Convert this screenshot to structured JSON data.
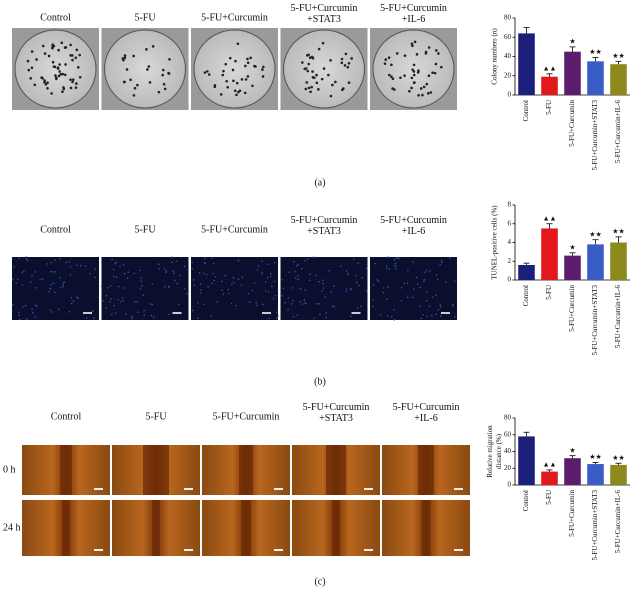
{
  "panels": [
    {
      "label": "(a)",
      "columns": [
        [
          "Control"
        ],
        [
          "5-FU"
        ],
        [
          "5-FU+Curcumin"
        ],
        [
          "5-FU+Curcumin",
          "+STAT3"
        ],
        [
          "5-FU+Curcumin",
          "+IL-6"
        ]
      ]
    },
    {
      "label": "(b)",
      "columns": [
        [
          "Control"
        ],
        [
          "5-FU"
        ],
        [
          "5-FU+Curcumin"
        ],
        [
          "5-FU+Curcumin",
          "+STAT3"
        ],
        [
          "5-FU+Curcumin",
          "+IL-6"
        ]
      ]
    },
    {
      "label": "(c)",
      "columns": [
        [
          "Control"
        ],
        [
          "5-FU"
        ],
        [
          "5-FU+Curcumin"
        ],
        [
          "5-FU+Curcumin",
          "+STAT3"
        ],
        [
          "5-FU+Curcumin",
          "+IL-6"
        ]
      ],
      "rows": [
        "0 h",
        "24 h"
      ]
    }
  ],
  "chart_data": [
    {
      "type": "bar",
      "ylabel": [
        "Colony numbers (n)"
      ],
      "categories": [
        "Control",
        "5-FU",
        "5-FU+Curcumin",
        "5-FU+Curcumin+STAT3",
        "5-FU+Curcumin+IL-6"
      ],
      "values": [
        64,
        19,
        45,
        35,
        32
      ],
      "errors": [
        6,
        3,
        5,
        4,
        3
      ],
      "markers": [
        null,
        "▲▲",
        "★",
        "★★",
        "★★"
      ],
      "colors": [
        "#1c1f7a",
        "#e3181c",
        "#5b1d6b",
        "#3a5cc6",
        "#8c8a1c"
      ],
      "ylim": [
        0,
        80
      ],
      "yticks": [
        0,
        20,
        40,
        60,
        80
      ]
    },
    {
      "type": "bar",
      "ylabel": [
        "TUNEL-positive cells (%)"
      ],
      "categories": [
        "Control",
        "5-FU",
        "5-FU+Curcumin",
        "5-FU+Curcumin+STAT3",
        "5-FU+Curcumin+IL-6"
      ],
      "values": [
        1.6,
        5.5,
        2.6,
        3.8,
        4.0
      ],
      "errors": [
        0.2,
        0.5,
        0.3,
        0.5,
        0.6
      ],
      "markers": [
        null,
        "▲▲",
        "★",
        "★★",
        "★★"
      ],
      "colors": [
        "#1c1f7a",
        "#e3181c",
        "#5b1d6b",
        "#3a5cc6",
        "#8c8a1c"
      ],
      "ylim": [
        0,
        8
      ],
      "yticks": [
        0,
        2,
        4,
        6,
        8
      ]
    },
    {
      "type": "bar",
      "ylabel": [
        "Relative migration",
        "distance (%)"
      ],
      "categories": [
        "Control",
        "5-FU",
        "5-FU+Curcumin",
        "5-FU+Curcumin+STAT3",
        "5-FU+Curcumin+IL-6"
      ],
      "values": [
        58,
        16,
        32,
        25,
        24
      ],
      "errors": [
        5,
        2,
        3,
        2,
        2
      ],
      "markers": [
        null,
        "▲▲",
        "★",
        "★★",
        "★★"
      ],
      "colors": [
        "#1c1f7a",
        "#e3181c",
        "#5b1d6b",
        "#3a5cc6",
        "#8c8a1c"
      ],
      "ylim": [
        0,
        80
      ],
      "yticks": [
        0,
        20,
        40,
        60,
        80
      ]
    }
  ]
}
